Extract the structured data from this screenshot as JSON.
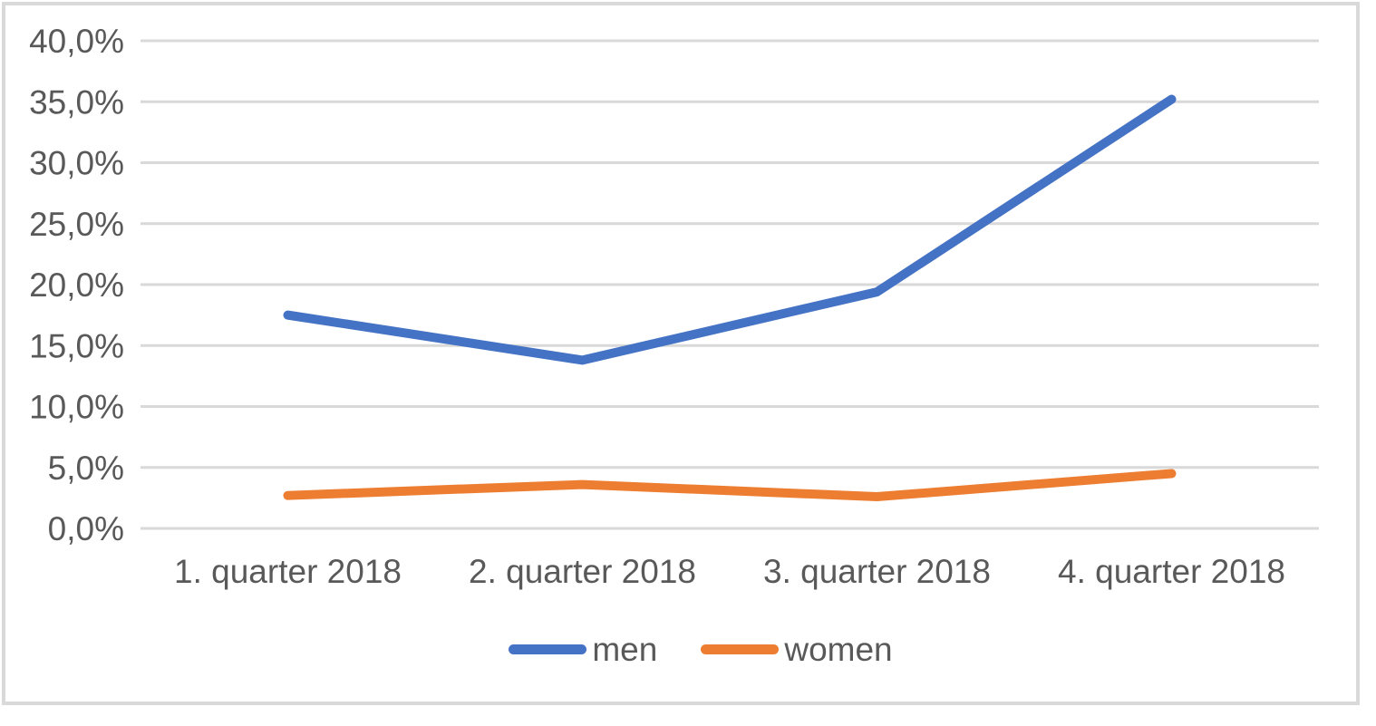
{
  "chart_data": {
    "type": "line",
    "categories": [
      "1. quarter 2018",
      "2. quarter 2018",
      "3. quarter 2018",
      "4. quarter 2018"
    ],
    "series": [
      {
        "name": "men",
        "color": "#4472C4",
        "values": [
          17.5,
          13.8,
          19.4,
          35.2
        ]
      },
      {
        "name": "women",
        "color": "#ED7D31",
        "values": [
          2.7,
          3.6,
          2.6,
          4.5
        ]
      }
    ],
    "y_ticks": [
      "0,0%",
      "5,0%",
      "10,0%",
      "15,0%",
      "20,0%",
      "25,0%",
      "30,0%",
      "35,0%",
      "40,0%"
    ],
    "ylim": [
      0,
      40
    ],
    "y_step": 5,
    "title": "",
    "xlabel": "",
    "ylabel": "",
    "grid": true,
    "legend_position": "bottom",
    "colors": {
      "gridline": "#D9D9D9",
      "chart_border": "#D9D9D9",
      "axis_text": "#595959",
      "background": "#FFFFFF"
    }
  }
}
